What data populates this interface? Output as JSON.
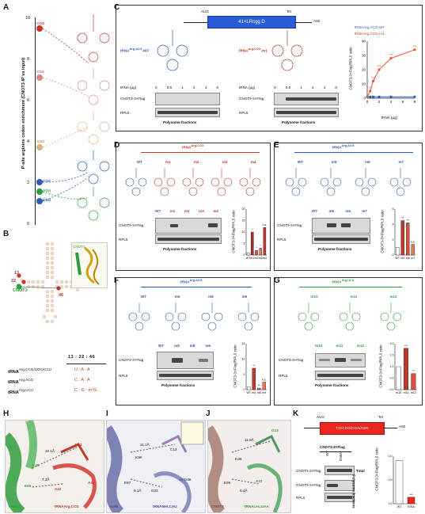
{
  "panels": {
    "A": {
      "letter": "A",
      "ylabel": "P-site arginine codon enrichment (CNOT3-IP vs input)",
      "yticks": [
        "0",
        "2",
        "4",
        "6",
        "8",
        "10"
      ],
      "codons": [
        "CGG",
        "CGA",
        "AGG",
        "CGC",
        "AGA",
        "CGU"
      ],
      "codon_colors": [
        "#c0392b",
        "#c0392b",
        "#d4a574",
        "#2a5cb8",
        "#2e9e3e",
        "#2a5cb8"
      ]
    },
    "B": {
      "letter": "B",
      "cnot3": "CNOT3",
      "nums": [
        "13",
        "22",
        "46"
      ],
      "ratio_head": "13 : 22 : 46",
      "rows": [
        {
          "label": "tRNA",
          "sup": "Arg,CCG/UCG/CCU",
          "val": "U : A : A"
        },
        {
          "label": "tRNA",
          "sup": "Arg,ACG",
          "val": "C : A : A"
        },
        {
          "label": "tRNA",
          "sup": "Arg,UCU",
          "val": "C : G : m¹G"
        }
      ],
      "inset": "CNOT3"
    },
    "C": {
      "letter": "C",
      "construct": "41×LRcgg D",
      "start": "AUG",
      "stop": "Ter",
      "poly": "A50",
      "wt_label": "tRNA",
      "wt_sup": "Arg,ACG",
      "wt_suffix": "-WT",
      "m1_label": "tRNA",
      "m1_sup": "Arg,CCG",
      "m1_suffix": "-m1",
      "trna_ug": "tRNA (µg)",
      "doses": [
        "0",
        "0.5",
        "1",
        "2",
        "4",
        "8"
      ],
      "blot_top": "CNOT3-3×Flag",
      "blot_bottom": "RPL5",
      "fractions": "Polysome fractions",
      "legend_wt": "tRNAArg,ACG-WT",
      "legend_m1": "tRNAArg,CCG-m1",
      "ylabel": "CNOT3-3×Flag/RPL5 ratio",
      "xlabel": "tRNA (µg)",
      "xticks": [
        "0",
        "2",
        "4",
        "6",
        "8"
      ],
      "yticks": [
        "0",
        "10",
        "20",
        "30",
        "40"
      ],
      "stars": [
        "**",
        "***",
        "***",
        "***",
        "***"
      ]
    },
    "D": {
      "letter": "D",
      "title": "tRNA",
      "title_sup": "Arg,CCG",
      "lanes": [
        "WT",
        "m1",
        "m2",
        "m3",
        "m4"
      ],
      "blot_top": "CNOT3-3×Flag",
      "blot_bottom": "RPL5",
      "fractions": "Polysome fractions",
      "ylabel": "CNOT3-3×Flag/RPL5 ratio",
      "yticks": [
        "0",
        "5",
        "10",
        "15",
        "20"
      ],
      "stars": [
        "*",
        "*",
        "*",
        "n.s."
      ]
    },
    "E": {
      "letter": "E",
      "title": "tRNA",
      "title_sup": "Arg,ACG",
      "lanes": [
        "WT",
        "m5",
        "m6",
        "m7"
      ],
      "blot_top": "CNOT3-3×Flag",
      "blot_bottom": "RPL5",
      "fractions": "Polysome fractions",
      "ylabel": "CNOT3-3×Flag/RPL5 ratio",
      "yticks": [
        "0",
        "2",
        "4",
        "6"
      ],
      "stars": [
        "**",
        "**",
        "n.s."
      ]
    },
    "F": {
      "letter": "F",
      "title": "tRNA",
      "title_sup": "Arg,ACG",
      "lanes": [
        "WT",
        "m5",
        "m8",
        "m9"
      ],
      "blot_top": "CNOT3-3×Flag",
      "blot_bottom": "RPL5",
      "fractions": "Polysome fractions",
      "ylabel": "CNOT3-3×Flag/RPL5 ratio",
      "yticks": [
        "0",
        "5",
        "10",
        "15"
      ],
      "stars": [
        "**",
        "**",
        "n.s."
      ]
    },
    "G": {
      "letter": "G",
      "title": "tRNA",
      "title_sup": "Arg,UCU",
      "lanes": [
        "m10",
        "m11",
        "m12"
      ],
      "blot_top": "CNOT3-3×Flag",
      "blot_bottom": "RPL5",
      "fractions": "Polysome fractions",
      "ylabel": "CNOT3-3×Flag/RPL5 ratio",
      "yticks": [
        "0.0",
        "0.5",
        "1.0",
        "1.5",
        "2.0"
      ],
      "stars": [
        "***",
        "**"
      ]
    },
    "H": {
      "letter": "H",
      "labels": [
        "K49",
        "E95",
        "U13",
        "A22",
        "A46",
        "10.1Å",
        "7.3Å",
        "CNOT3",
        "tRNAArg,CCG"
      ]
    },
    "I": {
      "letter": "I",
      "labels": [
        "K50",
        "E97",
        "C13",
        "G22",
        "m²G46",
        "11.1Å",
        "9.1Å",
        "Not5",
        "tRNAMet,CAU"
      ]
    },
    "J": {
      "letter": "J",
      "labels": [
        "K49",
        "E95",
        "G13",
        "A22",
        "11.9Å",
        "8.4Å",
        "CNOT3",
        "tRNALeu,UAA"
      ]
    },
    "K": {
      "letter": "K",
      "construct": "T3×CGG/CGA/AGG",
      "start": "AUG",
      "stop": "Ter",
      "poly": "A50",
      "group": "CNOT3-3×Flag",
      "lanes": [
        "WT",
        "E95A"
      ],
      "blot_total": "CNOT3-3×Flag",
      "total": "Total",
      "blot_poly": "CNOT3-3×Flag",
      "rpl5": "RPL5",
      "fractions": "Polysome fractions",
      "ylabel": "CNOT3-3×Flag/RPL5 ratio",
      "yticks": [
        "0.0",
        "0.5",
        "1.0"
      ],
      "stars": [
        "***"
      ],
      "xcats": [
        "WT",
        "E95A"
      ]
    }
  },
  "chart_data": [
    {
      "type": "line",
      "panel": "C",
      "title": "",
      "xlabel": "tRNA (µg)",
      "ylabel": "CNOT3-3×Flag/RPL5 ratio",
      "xlim": [
        0,
        8
      ],
      "ylim": [
        0,
        40
      ],
      "series": [
        {
          "name": "tRNAArg,ACG-WT",
          "x": [
            0,
            0.5,
            1,
            2,
            4,
            8
          ],
          "values": [
            1,
            1,
            1,
            1,
            1,
            1
          ]
        },
        {
          "name": "tRNAArg,CCG-m1",
          "x": [
            0,
            0.5,
            1,
            2,
            4,
            8
          ],
          "values": [
            1,
            5,
            12,
            20,
            28,
            34
          ]
        }
      ]
    },
    {
      "type": "bar",
      "panel": "D",
      "categories": [
        "WT",
        "m1",
        "m2",
        "m3",
        "m4"
      ],
      "values": [
        1,
        10,
        2,
        3,
        12
      ],
      "ylim": [
        0,
        20
      ]
    },
    {
      "type": "bar",
      "panel": "E",
      "categories": [
        "WT",
        "m5",
        "m6",
        "m7"
      ],
      "values": [
        1,
        4.5,
        4.2,
        1.4
      ],
      "ylim": [
        0,
        6
      ]
    },
    {
      "type": "bar",
      "panel": "F",
      "categories": [
        "WT",
        "m5",
        "m8",
        "m9"
      ],
      "values": [
        1,
        7,
        0.5,
        2.5
      ],
      "ylim": [
        0,
        15
      ]
    },
    {
      "type": "bar",
      "panel": "G",
      "categories": [
        "m10",
        "m11",
        "m12"
      ],
      "values": [
        1,
        1.8,
        0.7
      ],
      "ylim": [
        0,
        2
      ]
    },
    {
      "type": "bar",
      "panel": "K",
      "categories": [
        "WT",
        "E95A"
      ],
      "values": [
        1,
        0.15
      ],
      "ylim": [
        0,
        1.1
      ]
    }
  ]
}
